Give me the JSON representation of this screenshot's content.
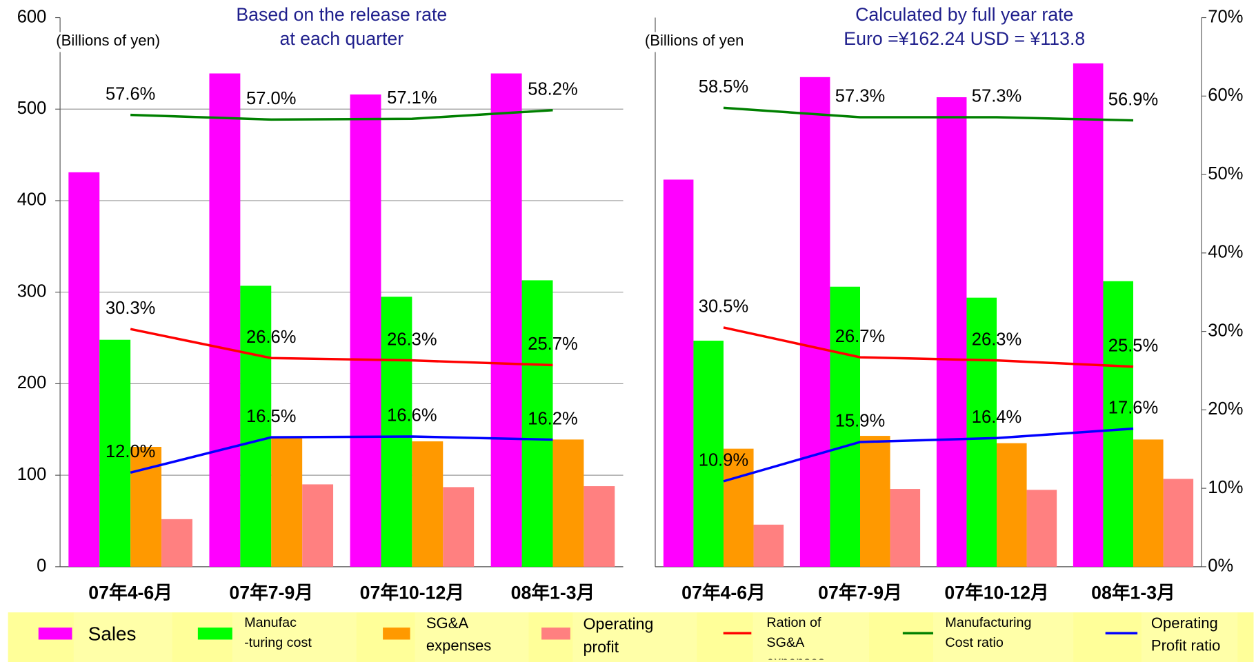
{
  "chart_data": [
    {
      "type": "bar",
      "title": "Based on the release rate\nat each quarter",
      "y_label": "(Billions of yen)",
      "categories": [
        "07年4-6月",
        "07年7-9月",
        "07年10-12月",
        "08年1-3月"
      ],
      "ylim": [
        0,
        600
      ],
      "yticks": [
        0,
        100,
        200,
        300,
        400,
        500,
        600
      ],
      "y2lim": [
        0,
        70
      ],
      "grid": true,
      "series": [
        {
          "name": "Sales",
          "color": "#ff00ff",
          "values": [
            431,
            539,
            516,
            539
          ]
        },
        {
          "name": "Manufac\n-turing cost",
          "color": "#00ff00",
          "values": [
            248,
            307,
            295,
            313
          ]
        },
        {
          "name": "SG&A\nexpenses",
          "color": "#ff9900",
          "values": [
            131,
            142,
            137,
            139
          ]
        },
        {
          "name": "Operating\nprofit",
          "color": "#ff8080",
          "values": [
            52,
            90,
            87,
            88
          ]
        },
        {
          "name": "Ration of\nSG&A\nexpenses",
          "type": "line",
          "axis": "y2",
          "color": "#ff0000",
          "values": [
            30.3,
            26.6,
            26.3,
            25.7
          ],
          "value_labels": [
            "30.3%",
            "26.6%",
            "26.3%",
            "25.7%"
          ]
        },
        {
          "name": "Manufacturing\nCost ratio",
          "type": "line",
          "axis": "y2",
          "color": "#008000",
          "values": [
            57.6,
            57.0,
            57.1,
            58.2
          ],
          "value_labels": [
            "57.6%",
            "57.0%",
            "57.1%",
            "58.2%"
          ]
        },
        {
          "name": "Operating\nProfit ratio",
          "type": "line",
          "axis": "y2",
          "color": "#0000ff",
          "values": [
            12.0,
            16.5,
            16.6,
            16.2
          ],
          "value_labels": [
            "12.0%",
            "16.5%",
            "16.6%",
            "16.2%"
          ]
        }
      ]
    },
    {
      "type": "bar",
      "title": "Calculated by full year rate\nEuro =¥162.24 USD = ¥113.8",
      "y_label": "(Billions of yen",
      "categories": [
        "07年4-6月",
        "07年7-9月",
        "07年10-12月",
        "08年1-3月"
      ],
      "ylim": [
        0,
        600
      ],
      "y2lim": [
        0,
        70
      ],
      "y2ticks": [
        {
          "value": 0,
          "label": "0%"
        },
        {
          "value": 10,
          "label": "10%"
        },
        {
          "value": 20,
          "label": "20%"
        },
        {
          "value": 30,
          "label": "30%"
        },
        {
          "value": 40,
          "label": "40%"
        },
        {
          "value": 50,
          "label": "50%"
        },
        {
          "value": 60,
          "label": "60%"
        },
        {
          "value": 70,
          "label": "70%"
        }
      ],
      "series": [
        {
          "color": "#ff00ff",
          "values": [
            423,
            535,
            513,
            550
          ]
        },
        {
          "color": "#00ff00",
          "values": [
            247,
            306,
            294,
            312
          ]
        },
        {
          "color": "#ff9900",
          "values": [
            129,
            143,
            135,
            139
          ]
        },
        {
          "color": "#ff8080",
          "values": [
            46,
            85,
            84,
            96
          ]
        },
        {
          "type": "line",
          "axis": "y2",
          "color": "#ff0000",
          "values": [
            30.5,
            26.7,
            26.3,
            25.5
          ],
          "value_labels": [
            "30.5%",
            "26.7%",
            "26.3%",
            "25.5%"
          ]
        },
        {
          "type": "line",
          "axis": "y2",
          "color": "#008000",
          "values": [
            58.5,
            57.3,
            57.3,
            56.9
          ],
          "value_labels": [
            "58.5%",
            "57.3%",
            "57.3%",
            "56.9%"
          ]
        },
        {
          "type": "line",
          "axis": "y2",
          "color": "#0000ff",
          "values": [
            10.9,
            15.9,
            16.4,
            17.6
          ],
          "value_labels": [
            "10.9%",
            "15.9%",
            "16.4%",
            "17.6%"
          ]
        }
      ]
    }
  ]
}
